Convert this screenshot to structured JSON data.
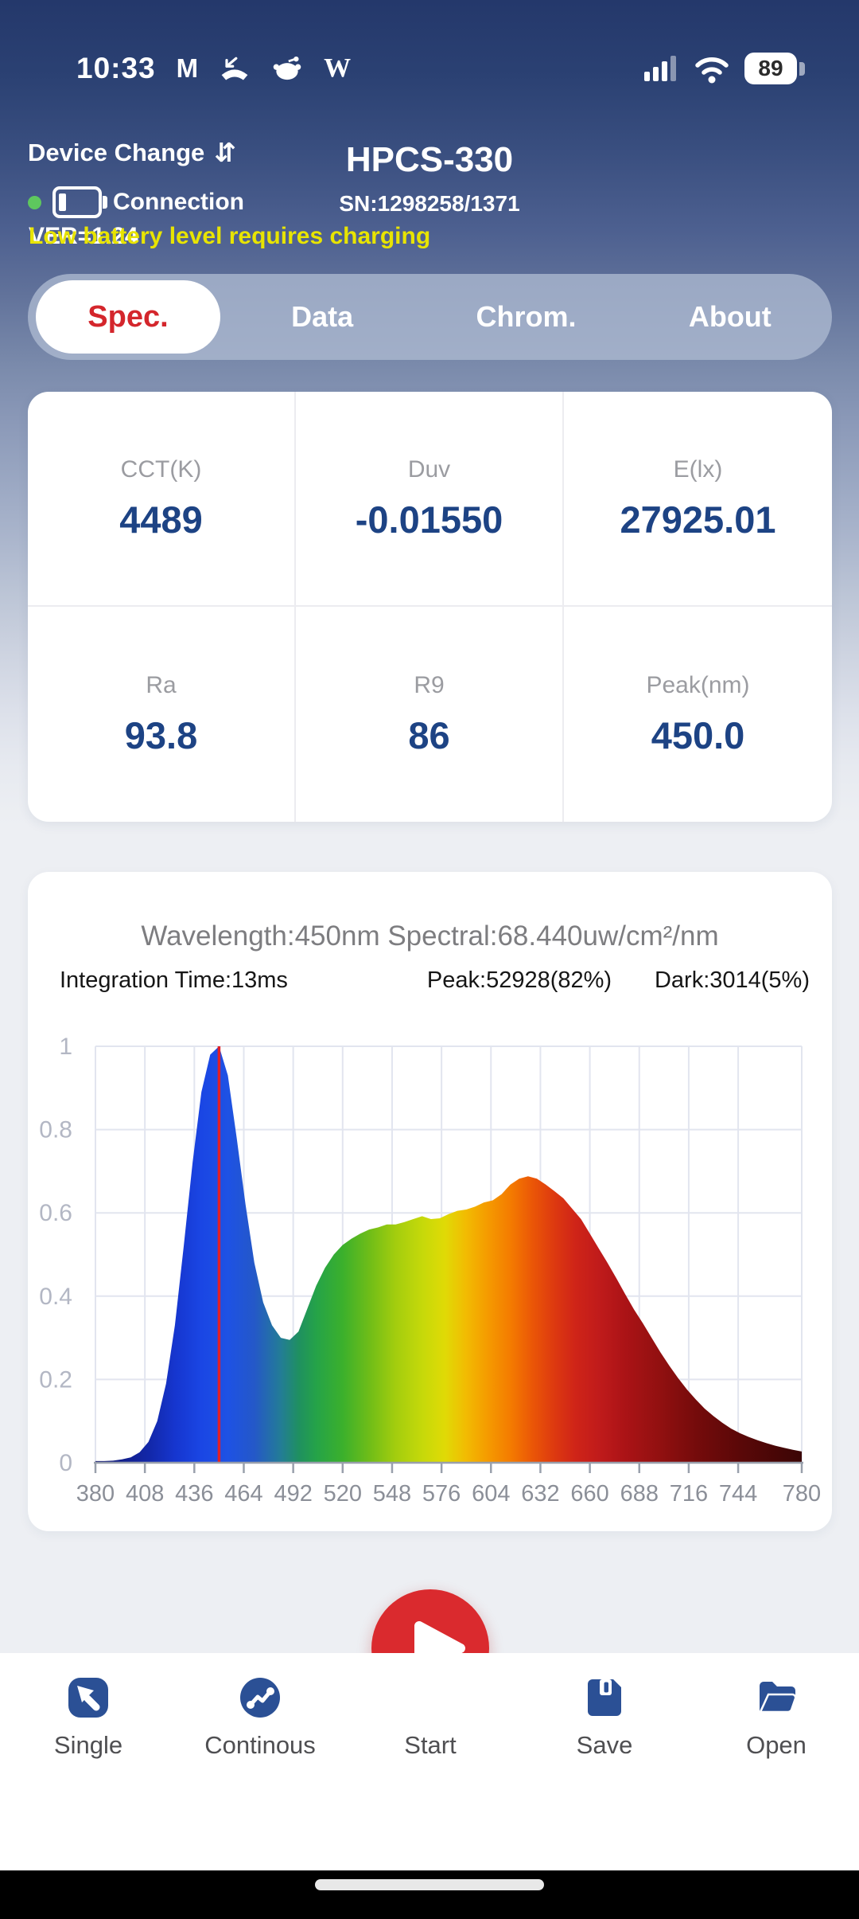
{
  "status_bar": {
    "time": "10:33",
    "battery_percent": "89",
    "notification_icons": [
      "gmail-icon",
      "missed-call-icon",
      "reddit-icon",
      "wikipedia-icon"
    ],
    "system_icons": [
      "signal-icon",
      "wifi-icon",
      "battery-indicator"
    ]
  },
  "header": {
    "device_change_label": "Device Change",
    "title": "HPCS-330",
    "serial": "SN:1298258/1371",
    "connection_label": "Connection",
    "version_text": "VER=1.24",
    "warning_text": "Low battery level requires charging"
  },
  "tabs": [
    {
      "label": "Spec.",
      "active": true
    },
    {
      "label": "Data",
      "active": false
    },
    {
      "label": "Chrom.",
      "active": false
    },
    {
      "label": "About",
      "active": false
    }
  ],
  "metrics": [
    {
      "label": "CCT(K)",
      "value": "4489"
    },
    {
      "label": "Duv",
      "value": "-0.01550"
    },
    {
      "label": "E(lx)",
      "value": "27925.01"
    },
    {
      "label": "Ra",
      "value": "93.8"
    },
    {
      "label": "R9",
      "value": "86"
    },
    {
      "label": "Peak(nm)",
      "value": "450.0"
    }
  ],
  "chart_card": {
    "title": "Wavelength:450nm Spectral:68.440uw/cm²/nm",
    "integration": "Integration Time:13ms",
    "peak": "Peak:52928(82%)",
    "dark": "Dark:3014(5%)"
  },
  "chart_data": {
    "type": "area",
    "title": "Wavelength:450nm Spectral:68.440uw/cm²/nm",
    "xlabel": "",
    "ylabel": "",
    "x_range": [
      380,
      780
    ],
    "y_range": [
      0,
      1
    ],
    "grid": true,
    "legend": false,
    "x_label_ticks": [
      380,
      408,
      436,
      464,
      492,
      520,
      548,
      576,
      604,
      632,
      660,
      688,
      716,
      744,
      780
    ],
    "y_ticks": [
      0,
      0.2,
      0.4,
      0.6,
      0.8,
      1
    ],
    "y_tick_labels": [
      "0",
      "0.2",
      "0.4",
      "0.6",
      "0.8",
      "1"
    ],
    "marker_wavelength": 450,
    "samples": {
      "wavelength_nm": [
        380,
        385,
        390,
        395,
        400,
        405,
        410,
        415,
        420,
        425,
        430,
        435,
        440,
        445,
        450,
        455,
        460,
        465,
        470,
        475,
        480,
        485,
        490,
        495,
        500,
        505,
        510,
        515,
        520,
        525,
        530,
        535,
        540,
        545,
        550,
        555,
        560,
        565,
        570,
        575,
        580,
        585,
        590,
        595,
        600,
        605,
        610,
        615,
        620,
        625,
        630,
        635,
        640,
        645,
        650,
        655,
        660,
        665,
        670,
        675,
        680,
        685,
        690,
        695,
        700,
        705,
        710,
        715,
        720,
        725,
        730,
        735,
        740,
        745,
        750,
        755,
        760,
        765,
        770,
        775,
        780
      ],
      "normalized_intensity": [
        0.004,
        0.004,
        0.005,
        0.008,
        0.013,
        0.025,
        0.05,
        0.1,
        0.19,
        0.33,
        0.52,
        0.72,
        0.89,
        0.98,
        1.0,
        0.93,
        0.78,
        0.62,
        0.48,
        0.385,
        0.33,
        0.3,
        0.295,
        0.315,
        0.37,
        0.425,
        0.468,
        0.5,
        0.523,
        0.538,
        0.55,
        0.56,
        0.565,
        0.572,
        0.572,
        0.578,
        0.585,
        0.592,
        0.585,
        0.587,
        0.597,
        0.605,
        0.608,
        0.615,
        0.625,
        0.63,
        0.645,
        0.668,
        0.682,
        0.688,
        0.682,
        0.668,
        0.652,
        0.635,
        0.61,
        0.585,
        0.55,
        0.515,
        0.48,
        0.443,
        0.405,
        0.368,
        0.335,
        0.3,
        0.265,
        0.233,
        0.203,
        0.176,
        0.152,
        0.13,
        0.112,
        0.096,
        0.082,
        0.071,
        0.062,
        0.054,
        0.047,
        0.041,
        0.036,
        0.031,
        0.027
      ]
    },
    "spectrum_gradient": [
      {
        "offset": 0.0,
        "color": "#10166e"
      },
      {
        "offset": 0.075,
        "color": "#1227a8"
      },
      {
        "offset": 0.113,
        "color": "#1636cf"
      },
      {
        "offset": 0.15,
        "color": "#1a46e4"
      },
      {
        "offset": 0.188,
        "color": "#1e52e4"
      },
      {
        "offset": 0.225,
        "color": "#2458c8"
      },
      {
        "offset": 0.263,
        "color": "#237d95"
      },
      {
        "offset": 0.288,
        "color": "#1f9060"
      },
      {
        "offset": 0.313,
        "color": "#25a348"
      },
      {
        "offset": 0.35,
        "color": "#3bb02c"
      },
      {
        "offset": 0.388,
        "color": "#6fbd18"
      },
      {
        "offset": 0.425,
        "color": "#a3cd0e"
      },
      {
        "offset": 0.463,
        "color": "#c6d90a"
      },
      {
        "offset": 0.495,
        "color": "#e0da06"
      },
      {
        "offset": 0.525,
        "color": "#f2bb02"
      },
      {
        "offset": 0.555,
        "color": "#f59b00"
      },
      {
        "offset": 0.588,
        "color": "#f47b00"
      },
      {
        "offset": 0.62,
        "color": "#ea5507"
      },
      {
        "offset": 0.65,
        "color": "#dd3910"
      },
      {
        "offset": 0.68,
        "color": "#cf2418"
      },
      {
        "offset": 0.713,
        "color": "#c01b1b"
      },
      {
        "offset": 0.75,
        "color": "#ab1316"
      },
      {
        "offset": 0.8,
        "color": "#911010"
      },
      {
        "offset": 0.85,
        "color": "#750b0b"
      },
      {
        "offset": 0.913,
        "color": "#5a0808"
      },
      {
        "offset": 1.0,
        "color": "#3b0505"
      }
    ]
  },
  "toolbar": {
    "items": [
      {
        "label": "Single"
      },
      {
        "label": "Continous"
      },
      {
        "label": "Start"
      },
      {
        "label": "Save"
      },
      {
        "label": "Open"
      }
    ]
  },
  "colors": {
    "header_gradient_top": "#24386b",
    "tab_active_text": "#d4262c",
    "metric_value_navy": "#1d4384",
    "warning_yellow": "#e8e400",
    "connection_dot_green": "#5ec75e",
    "start_button_red": "#da2a2e",
    "toolbar_icon_blue": "#2b5095",
    "chart_marker_red": "#e11f26",
    "chart_grid": "#e2e5ef",
    "chart_axis": "#99a0ac",
    "x_tick_label": "#8b8f98",
    "y_tick_label": "#b3b7c4"
  }
}
